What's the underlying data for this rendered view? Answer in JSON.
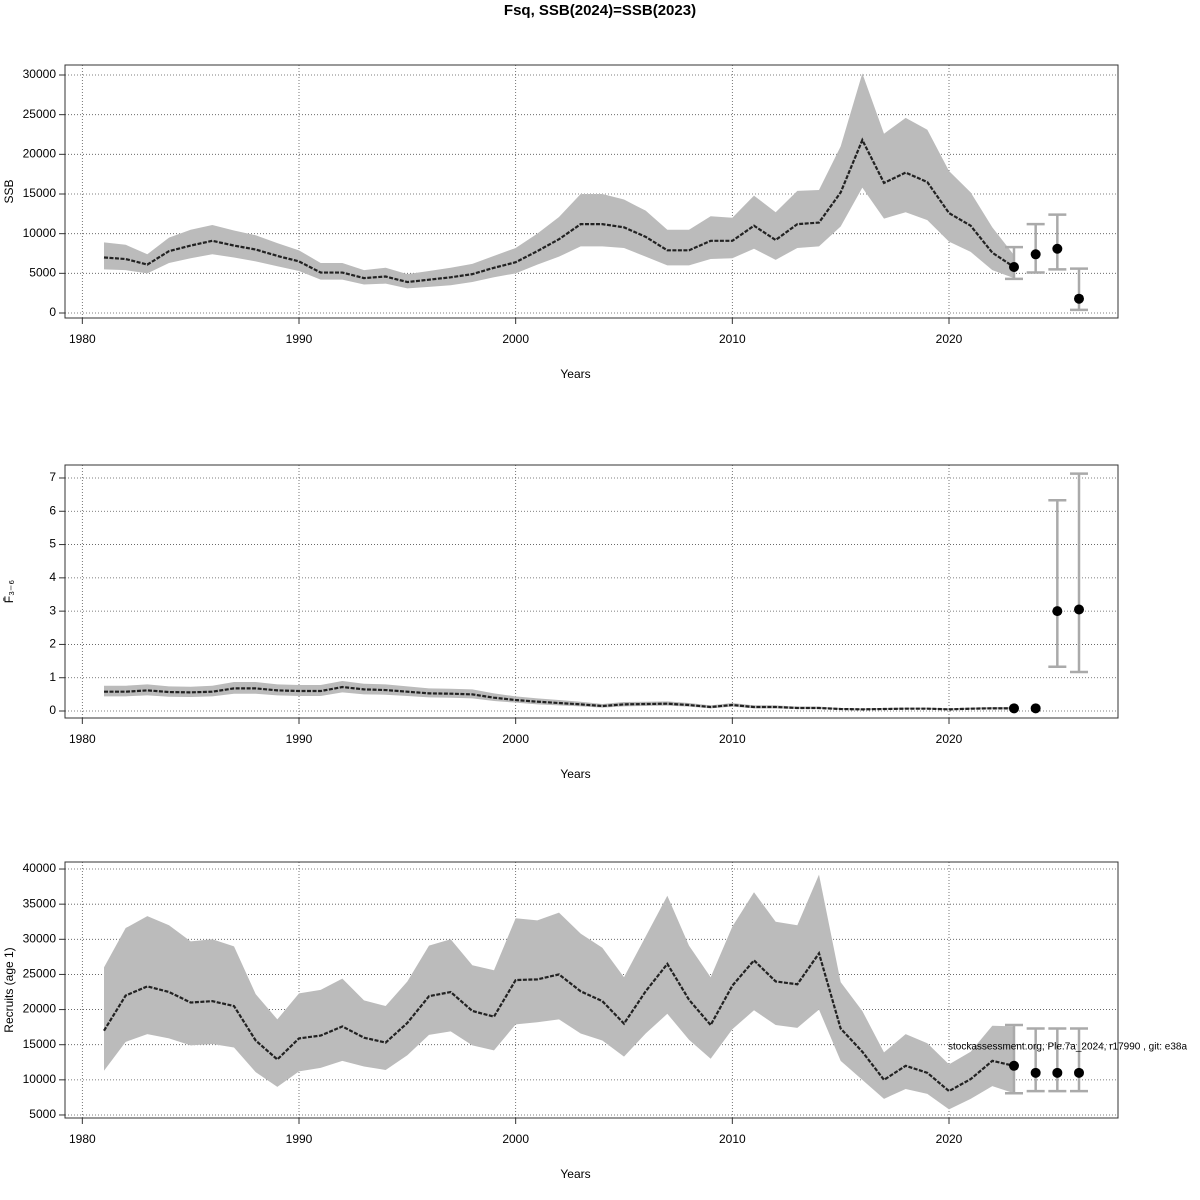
{
  "title": "Fsq, SSB(2024)=SSB(2023)",
  "chart_data": [
    {
      "type": "line",
      "xlabel": "Years",
      "ylabel": "SSB",
      "xlim": [
        1979.2,
        2027.8
      ],
      "xticks": [
        1980,
        1990,
        2000,
        2010,
        2020
      ],
      "ylim": [
        -630,
        31260
      ],
      "yticks": [
        0,
        5000,
        10000,
        15000,
        20000,
        25000,
        30000
      ],
      "grid": true,
      "line_color": "#222222",
      "band_color": "#bbbbbb",
      "errorbar_color": "#aaaaaa",
      "point_color": "#000000",
      "x": [
        1981,
        1982,
        1983,
        1984,
        1985,
        1986,
        1987,
        1988,
        1989,
        1990,
        1991,
        1992,
        1993,
        1994,
        1995,
        1996,
        1997,
        1998,
        1999,
        2000,
        2001,
        2002,
        2003,
        2004,
        2005,
        2006,
        2007,
        2008,
        2009,
        2010,
        2011,
        2012,
        2013,
        2014,
        2015,
        2016,
        2017,
        2018,
        2019,
        2020,
        2021,
        2022,
        2023
      ],
      "values": [
        7000,
        6800,
        6100,
        7800,
        8500,
        9100,
        8500,
        8000,
        7200,
        6500,
        5100,
        5100,
        4400,
        4600,
        3900,
        4200,
        4500,
        4900,
        5700,
        6400,
        7800,
        9300,
        11200,
        11200,
        10800,
        9600,
        7900,
        7900,
        9100,
        9100,
        11000,
        9200,
        11200,
        11400,
        15200,
        21800,
        16400,
        17700,
        16500,
        12600,
        11000,
        7600,
        5800
      ],
      "upper": [
        8900,
        8600,
        7400,
        9500,
        10500,
        11100,
        10400,
        9800,
        8800,
        7900,
        6300,
        6300,
        5400,
        5700,
        4900,
        5300,
        5700,
        6200,
        7200,
        8200,
        10000,
        12100,
        15000,
        15000,
        14300,
        12900,
        10500,
        10500,
        12200,
        12000,
        14800,
        12700,
        15400,
        15500,
        21000,
        30200,
        22600,
        24600,
        23100,
        17900,
        15200,
        10800,
        7300
      ],
      "lower": [
        5500,
        5400,
        5000,
        6300,
        6900,
        7400,
        7000,
        6500,
        5900,
        5300,
        4200,
        4200,
        3600,
        3700,
        3100,
        3300,
        3500,
        3900,
        4500,
        5000,
        6100,
        7100,
        8400,
        8400,
        8200,
        7100,
        6000,
        6000,
        6800,
        6900,
        8100,
        6700,
        8200,
        8400,
        10900,
        15800,
        11900,
        12700,
        11700,
        9000,
        7700,
        5400,
        4400
      ],
      "forecast": {
        "x": [
          2023,
          2024,
          2025,
          2026
        ],
        "values": [
          5800,
          7400,
          8100,
          1800
        ],
        "lower": [
          4300,
          5100,
          5500,
          400
        ],
        "upper": [
          8300,
          11200,
          12400,
          5600
        ]
      }
    },
    {
      "type": "line",
      "xlabel": "Years",
      "ylabel": "F̄₃₋₆",
      "xlim": [
        1979.2,
        2027.8
      ],
      "xticks": [
        1980,
        1990,
        2000,
        2010,
        2020
      ],
      "ylim": [
        -0.21,
        7.39
      ],
      "yticks": [
        0,
        1,
        2,
        3,
        4,
        5,
        6,
        7
      ],
      "grid": true,
      "line_color": "#222222",
      "band_color": "#bbbbbb",
      "errorbar_color": "#aaaaaa",
      "point_color": "#000000",
      "x": [
        1981,
        1982,
        1983,
        1984,
        1985,
        1986,
        1987,
        1988,
        1989,
        1990,
        1991,
        1992,
        1993,
        1994,
        1995,
        1996,
        1997,
        1998,
        1999,
        2000,
        2001,
        2002,
        2003,
        2004,
        2005,
        2006,
        2007,
        2008,
        2009,
        2010,
        2011,
        2012,
        2013,
        2014,
        2015,
        2016,
        2017,
        2018,
        2019,
        2020,
        2021,
        2022,
        2023
      ],
      "values": [
        0.58,
        0.58,
        0.62,
        0.57,
        0.56,
        0.58,
        0.68,
        0.68,
        0.62,
        0.6,
        0.6,
        0.72,
        0.65,
        0.63,
        0.58,
        0.53,
        0.52,
        0.5,
        0.4,
        0.33,
        0.28,
        0.24,
        0.2,
        0.15,
        0.2,
        0.21,
        0.22,
        0.18,
        0.12,
        0.18,
        0.12,
        0.12,
        0.09,
        0.09,
        0.06,
        0.05,
        0.06,
        0.07,
        0.07,
        0.05,
        0.07,
        0.08,
        0.08
      ],
      "upper": [
        0.76,
        0.76,
        0.8,
        0.74,
        0.73,
        0.76,
        0.87,
        0.87,
        0.8,
        0.78,
        0.78,
        0.9,
        0.82,
        0.8,
        0.74,
        0.68,
        0.67,
        0.65,
        0.53,
        0.44,
        0.38,
        0.33,
        0.28,
        0.21,
        0.27,
        0.28,
        0.29,
        0.24,
        0.17,
        0.24,
        0.17,
        0.17,
        0.13,
        0.13,
        0.09,
        0.08,
        0.09,
        0.1,
        0.1,
        0.08,
        0.1,
        0.12,
        0.12
      ],
      "lower": [
        0.44,
        0.44,
        0.47,
        0.43,
        0.42,
        0.44,
        0.52,
        0.52,
        0.47,
        0.45,
        0.45,
        0.56,
        0.5,
        0.49,
        0.45,
        0.41,
        0.4,
        0.38,
        0.3,
        0.25,
        0.2,
        0.17,
        0.14,
        0.1,
        0.14,
        0.15,
        0.16,
        0.13,
        0.08,
        0.13,
        0.08,
        0.08,
        0.06,
        0.06,
        0.04,
        0.03,
        0.04,
        0.05,
        0.05,
        0.03,
        0.05,
        0.05,
        0.05
      ],
      "forecast": {
        "x": [
          2023,
          2024,
          2025,
          2026
        ],
        "values": [
          0.08,
          0.08,
          3.0,
          3.05
        ],
        "lower": [
          null,
          null,
          1.33,
          1.17
        ],
        "upper": [
          null,
          null,
          6.33,
          7.13
        ]
      }
    },
    {
      "type": "line",
      "xlabel": "Years",
      "ylabel": "Recruits (age 1)",
      "xlim": [
        1979.2,
        2027.8
      ],
      "xticks": [
        1980,
        1990,
        2000,
        2010,
        2020
      ],
      "ylim": [
        4570,
        41000
      ],
      "yticks": [
        5000,
        10000,
        15000,
        20000,
        25000,
        30000,
        35000,
        40000
      ],
      "grid": true,
      "line_color": "#222222",
      "band_color": "#bbbbbb",
      "errorbar_color": "#aaaaaa",
      "point_color": "#000000",
      "annotation": "stockassessment.org, Ple.7a_2024, r17990 , git: e38a",
      "x": [
        1981,
        1982,
        1983,
        1984,
        1985,
        1986,
        1987,
        1988,
        1989,
        1990,
        1991,
        1992,
        1993,
        1994,
        1995,
        1996,
        1997,
        1998,
        1999,
        2000,
        2001,
        2002,
        2003,
        2004,
        2005,
        2006,
        2007,
        2008,
        2009,
        2010,
        2011,
        2012,
        2013,
        2014,
        2015,
        2016,
        2017,
        2018,
        2019,
        2020,
        2021,
        2022,
        2023
      ],
      "values": [
        17000,
        22000,
        23300,
        22500,
        21000,
        21200,
        20500,
        15600,
        12900,
        15900,
        16300,
        17600,
        16000,
        15300,
        18100,
        21900,
        22500,
        19800,
        19000,
        24200,
        24300,
        25000,
        22600,
        21200,
        18000,
        22600,
        26500,
        21400,
        17800,
        23400,
        27000,
        24000,
        23600,
        28000,
        17300,
        14000,
        10000,
        12000,
        11000,
        8400,
        10100,
        12700,
        12000
      ],
      "upper": [
        26000,
        31600,
        33300,
        32000,
        29700,
        30000,
        29000,
        22200,
        18600,
        22300,
        22800,
        24400,
        21300,
        20500,
        24000,
        29100,
        30000,
        26300,
        25600,
        33000,
        32700,
        33800,
        30800,
        28800,
        24600,
        30400,
        36200,
        29100,
        24600,
        31800,
        36700,
        32500,
        32000,
        39200,
        23900,
        19800,
        13900,
        16500,
        15200,
        12200,
        14000,
        17700,
        17600
      ],
      "lower": [
        11300,
        15400,
        16500,
        15900,
        14900,
        15100,
        14600,
        11100,
        9000,
        11200,
        11700,
        12700,
        11900,
        11400,
        13500,
        16400,
        16900,
        14900,
        14200,
        17900,
        18200,
        18600,
        16600,
        15600,
        13300,
        16600,
        19400,
        15700,
        13000,
        17200,
        19900,
        17800,
        17400,
        20000,
        12700,
        10000,
        7300,
        8700,
        8000,
        5800,
        7300,
        9100,
        8100
      ],
      "forecast": {
        "x": [
          2023,
          2024,
          2025,
          2026
        ],
        "values": [
          12000,
          11000,
          11000,
          11000
        ],
        "lower": [
          8100,
          8400,
          8400,
          8400
        ],
        "upper": [
          17800,
          17300,
          17300,
          17300
        ]
      }
    }
  ]
}
